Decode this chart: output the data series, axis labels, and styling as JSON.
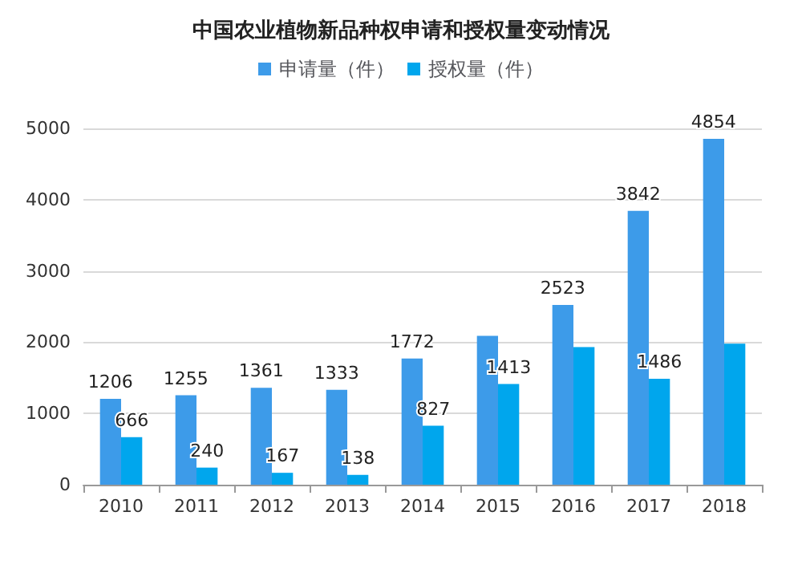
{
  "chart_data": {
    "type": "bar",
    "title": "中国农业植物新品种权申请和授权量变动情况",
    "categories": [
      "2010",
      "2011",
      "2012",
      "2013",
      "2014",
      "2015",
      "2016",
      "2017",
      "2018"
    ],
    "series": [
      {
        "name": "申请量（件）",
        "color": "#3d9be9",
        "values": [
          1206,
          1255,
          1361,
          1333,
          1772,
          2090,
          2523,
          3842,
          4854
        ],
        "value_labels": [
          "1206",
          "1255",
          "1361",
          "1333",
          "1772",
          null,
          "2523",
          "3842",
          "4854"
        ]
      },
      {
        "name": "授权量（件）",
        "color": "#00a6ed",
        "values": [
          666,
          240,
          167,
          138,
          827,
          1413,
          1930,
          1486,
          1980
        ],
        "value_labels": [
          "666",
          "240",
          "167",
          "138",
          "827",
          "1413",
          null,
          "1486",
          null
        ]
      }
    ],
    "ylim": [
      0,
      5000
    ],
    "yticks": [
      0,
      1000,
      2000,
      3000,
      4000,
      5000
    ],
    "grid": "y",
    "legend": "top"
  }
}
